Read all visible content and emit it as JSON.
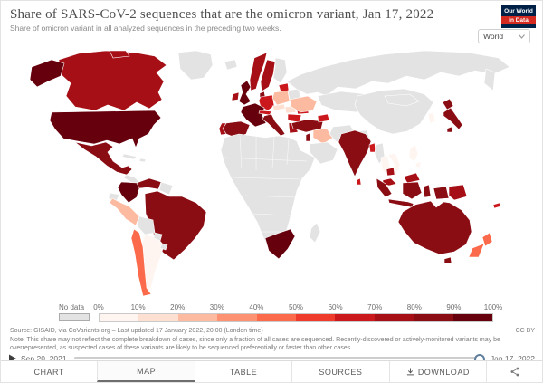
{
  "header": {
    "title": "Share of SARS-CoV-2 sequences that are the omicron variant, Jan 17, 2022",
    "subtitle": "Share of omicron variant in all analyzed sequences in the preceding two weeks.",
    "logo": {
      "line1": "Our World",
      "line2": "in Data",
      "navy": "#002147",
      "red": "#d42a20"
    },
    "region_selector": {
      "value": "World",
      "chevron_icon": "chevron-down-icon"
    }
  },
  "legend": {
    "no_data_label": "No data",
    "ticks": [
      "0%",
      "10%",
      "20%",
      "30%",
      "40%",
      "50%",
      "60%",
      "70%",
      "80%",
      "90%",
      "100%"
    ],
    "bin_colors": [
      "#fff5f0",
      "#fee0d2",
      "#fcbba1",
      "#fc9272",
      "#fb6a4a",
      "#ef3b2c",
      "#cb181d",
      "#a50f15",
      "#8a0d14",
      "#67000d"
    ],
    "no_data_color": "#e3e3e3"
  },
  "footer": {
    "source": "Source: GISAID, via CoVariants.org – Last updated 17 January 2022, 20:00 (London time)",
    "note": "Note: This share may not reflect the complete breakdown of cases, since only a fraction of all cases are sequenced. Recently-discovered or actively-monitored variants may be overrepresented, as suspected cases of these variants are likely to be sequenced preferentially or faster than other cases.",
    "license": "CC BY"
  },
  "timeline": {
    "start": "Sep 20, 2021",
    "end": "Jan 17, 2022"
  },
  "tabs": [
    {
      "label": "CHART"
    },
    {
      "label": "MAP",
      "active": true
    },
    {
      "label": "TABLE"
    },
    {
      "label": "SOURCES"
    },
    {
      "label": "DOWNLOAD",
      "icon": "download-icon"
    }
  ],
  "chart_data": {
    "type": "choropleth_map",
    "title": "Share of SARS-CoV-2 sequences that are the omicron variant",
    "date": "Jan 17, 2022",
    "unit": "%",
    "range": [
      0,
      100
    ],
    "bin_width": 10,
    "legend_position": "bottom",
    "regions": [
      {
        "id": "usa",
        "name": "United States",
        "value": 97
      },
      {
        "id": "canada",
        "name": "Canada",
        "value": 78
      },
      {
        "id": "mexico",
        "name": "Mexico",
        "value": 85
      },
      {
        "id": "colombia",
        "name": "Colombia",
        "value": 95
      },
      {
        "id": "venezuela",
        "name": "Venezuela",
        "value": 88
      },
      {
        "id": "brazil",
        "name": "Brazil",
        "value": 88
      },
      {
        "id": "peru",
        "name": "Peru",
        "value": 25
      },
      {
        "id": "chile",
        "name": "Chile",
        "value": 45
      },
      {
        "id": "argentina",
        "name": "Argentina",
        "value": 5
      },
      {
        "id": "uk",
        "name": "United Kingdom",
        "value": 97
      },
      {
        "id": "ireland",
        "name": "Ireland",
        "value": 78
      },
      {
        "id": "france",
        "name": "France",
        "value": 97
      },
      {
        "id": "spain",
        "name": "Spain",
        "value": 88
      },
      {
        "id": "portugal",
        "name": "Portugal",
        "value": 78
      },
      {
        "id": "germany",
        "name": "Germany",
        "value": 65
      },
      {
        "id": "poland",
        "name": "Poland",
        "value": 25
      },
      {
        "id": "czechia",
        "name": "Czechia",
        "value": 15
      },
      {
        "id": "austria_switzerland",
        "name": "Austria / Switzerland",
        "value": 68
      },
      {
        "id": "hungary_slovakia",
        "name": "Hungary / Slovakia",
        "value": 15
      },
      {
        "id": "romania",
        "name": "Romania",
        "value": 68
      },
      {
        "id": "serbia_bulgaria",
        "name": "Serbia / Bulgaria",
        "value": 68
      },
      {
        "id": "greece",
        "name": "Greece",
        "value": 78
      },
      {
        "id": "baltics",
        "name": "Baltic states",
        "value": 68
      },
      {
        "id": "belarus",
        "name": "Belarus",
        "value": null
      },
      {
        "id": "ukraine",
        "name": "Ukraine",
        "value": 28
      },
      {
        "id": "norway",
        "name": "Norway",
        "value": 78
      },
      {
        "id": "sweden",
        "name": "Sweden",
        "value": 78
      },
      {
        "id": "denmark",
        "name": "Denmark",
        "value": 88
      },
      {
        "id": "finland",
        "name": "Finland",
        "value": null
      },
      {
        "id": "italy",
        "name": "Italy",
        "value": 88
      },
      {
        "id": "turkey",
        "name": "Turkey",
        "value": 88
      },
      {
        "id": "georgia_azerbaijan",
        "name": "Georgia / Azerbaijan",
        "value": 68
      },
      {
        "id": "israel",
        "name": "Israel",
        "value": 88
      },
      {
        "id": "iraq",
        "name": "Iraq",
        "value": 25
      },
      {
        "id": "india",
        "name": "India",
        "value": 88
      },
      {
        "id": "sri_lanka",
        "name": "Sri Lanka",
        "value": 68
      },
      {
        "id": "bangladesh",
        "name": "Bangladesh",
        "value": 68
      },
      {
        "id": "myanmar",
        "name": "Myanmar",
        "value": null
      },
      {
        "id": "thailand",
        "name": "Thailand",
        "value": 5
      },
      {
        "id": "vietnam",
        "name": "Vietnam",
        "value": 5
      },
      {
        "id": "cambodia",
        "name": "Cambodia",
        "value": 75
      },
      {
        "id": "malaysia",
        "name": "Malaysia",
        "value": 78
      },
      {
        "id": "indonesia",
        "name": "Indonesia",
        "value": 88
      },
      {
        "id": "philippines",
        "name": "Philippines",
        "value": 5
      },
      {
        "id": "south_korea",
        "name": "South Korea",
        "value": 5
      },
      {
        "id": "papua_new_guinea",
        "name": "Papua New Guinea",
        "value": 78
      },
      {
        "id": "japan",
        "name": "Japan",
        "value": 88
      },
      {
        "id": "australia",
        "name": "Australia",
        "value": 88
      },
      {
        "id": "new_zealand",
        "name": "New Zealand",
        "value": 45
      },
      {
        "id": "new_caledonia",
        "name": "New Caledonia",
        "value": 68
      },
      {
        "id": "south_africa",
        "name": "South Africa",
        "value": 97
      },
      {
        "id": "russia",
        "name": "Russia",
        "value": null
      },
      {
        "id": "china",
        "name": "China",
        "value": null
      },
      {
        "id": "greenland",
        "name": "Greenland",
        "value": null
      }
    ]
  }
}
